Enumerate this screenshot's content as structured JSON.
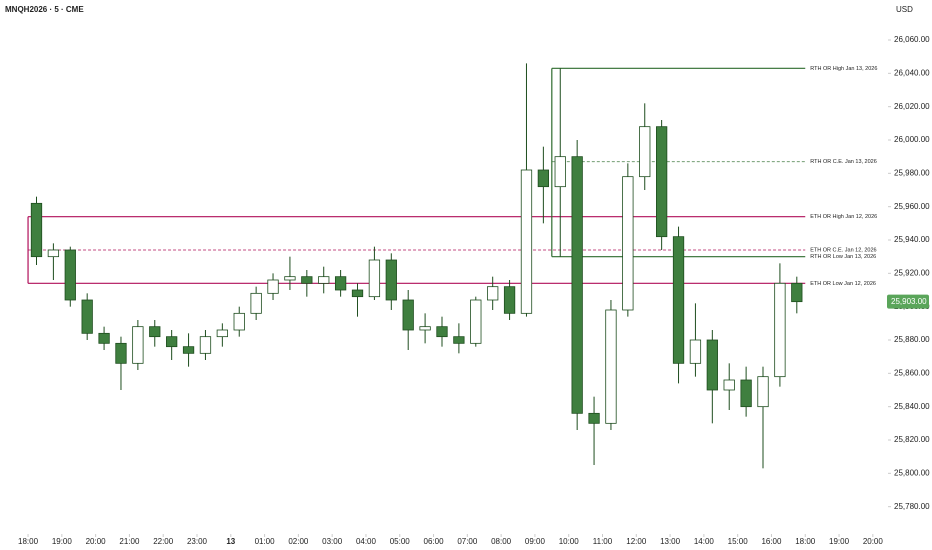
{
  "chart_data": {
    "type": "candlestick",
    "title": "MNQH2026 · 5 · CME",
    "currency": "USD",
    "xlim": [
      -0.83,
      25.36
    ],
    "ylim": [
      25766,
      26084
    ],
    "xticks": [
      {
        "value": 0,
        "label": "18:00"
      },
      {
        "value": 1,
        "label": "19:00"
      },
      {
        "value": 2,
        "label": "20:00"
      },
      {
        "value": 3,
        "label": "21:00"
      },
      {
        "value": 4,
        "label": "22:00"
      },
      {
        "value": 5,
        "label": "23:00"
      },
      {
        "value": 6,
        "label": "13"
      },
      {
        "value": 7,
        "label": "01:00"
      },
      {
        "value": 8,
        "label": "02:00"
      },
      {
        "value": 9,
        "label": "03:00"
      },
      {
        "value": 10,
        "label": "04:00"
      },
      {
        "value": 11,
        "label": "05:00"
      },
      {
        "value": 12,
        "label": "06:00"
      },
      {
        "value": 13,
        "label": "07:00"
      },
      {
        "value": 14,
        "label": "08:00"
      },
      {
        "value": 15,
        "label": "09:00"
      },
      {
        "value": 16,
        "label": "10:00"
      },
      {
        "value": 17,
        "label": "11:00"
      },
      {
        "value": 18,
        "label": "12:00"
      },
      {
        "value": 19,
        "label": "13:00"
      },
      {
        "value": 20,
        "label": "14:00"
      },
      {
        "value": 21,
        "label": "15:00"
      },
      {
        "value": 22,
        "label": "16:00"
      },
      {
        "value": 23,
        "label": "18:00"
      },
      {
        "value": 24,
        "label": "19:00"
      },
      {
        "value": 25,
        "label": "20:00"
      }
    ],
    "yticks": [
      {
        "value": 25780,
        "label": "25,780.00"
      },
      {
        "value": 25800,
        "label": "25,800.00"
      },
      {
        "value": 25820,
        "label": "25,820.00"
      },
      {
        "value": 25840,
        "label": "25,840.00"
      },
      {
        "value": 25860,
        "label": "25,860.00"
      },
      {
        "value": 25880,
        "label": "25,880.00"
      },
      {
        "value": 25900,
        "label": "25,900.00"
      },
      {
        "value": 25920,
        "label": "25,920.00"
      },
      {
        "value": 25940,
        "label": "25,940.00"
      },
      {
        "value": 25960,
        "label": "25,960.00"
      },
      {
        "value": 25980,
        "label": "25,980.00"
      },
      {
        "value": 26000,
        "label": "26,000.00"
      },
      {
        "value": 26020,
        "label": "26,020.00"
      },
      {
        "value": 26040,
        "label": "26,040.00"
      },
      {
        "value": 26060,
        "label": "26,060.00"
      }
    ],
    "x": [
      0,
      0.5,
      1,
      1.5,
      2,
      2.5,
      3,
      3.5,
      4,
      4.5,
      5,
      5.5,
      6,
      6.5,
      7,
      7.5,
      8,
      8.5,
      9,
      9.5,
      10,
      10.5,
      11,
      11.5,
      12,
      12.5,
      13,
      13.5,
      14,
      14.5,
      15,
      15.5,
      16,
      16.5,
      17,
      17.5,
      18,
      18.5,
      19,
      19.5,
      20,
      20.5,
      21,
      21.5,
      22,
      22.5
    ],
    "open": [
      25962,
      25930,
      25934,
      25904,
      25884,
      25878,
      25866,
      25888,
      25882,
      25876,
      25872,
      25882,
      25886,
      25896,
      25908,
      25916,
      25918,
      25914,
      25918,
      25910,
      25906,
      25928,
      25904,
      25886,
      25888,
      25882,
      25878,
      25904,
      25912,
      25896,
      25982,
      25972,
      25990,
      25836,
      25830,
      25898,
      25978,
      26008,
      25942,
      25866,
      25880,
      25850,
      25856,
      25840,
      25858,
      25914
    ],
    "high": [
      25966,
      25938,
      25936,
      25908,
      25888,
      25882,
      25892,
      25892,
      25886,
      25884,
      25886,
      25890,
      25900,
      25912,
      25920,
      25930,
      25922,
      25924,
      25922,
      25914,
      25936,
      25932,
      25910,
      25896,
      25894,
      25890,
      25906,
      25918,
      25916,
      26046,
      25996,
      26043,
      26000,
      25846,
      25904,
      25986,
      26022,
      26012,
      25948,
      25902,
      25886,
      25866,
      25864,
      25864,
      25926,
      25918
    ],
    "low": [
      25925,
      25916,
      25900,
      25880,
      25874,
      25850,
      25862,
      25876,
      25868,
      25864,
      25868,
      25876,
      25882,
      25892,
      25904,
      25910,
      25906,
      25908,
      25906,
      25894,
      25904,
      25898,
      25874,
      25878,
      25876,
      25872,
      25876,
      25898,
      25892,
      25894,
      25950,
      25930,
      25826,
      25805,
      25826,
      25894,
      25970,
      25934,
      25854,
      25858,
      25830,
      25838,
      25834,
      25803,
      25852,
      25896
    ],
    "close": [
      25930,
      25934,
      25904,
      25884,
      25878,
      25866,
      25888,
      25882,
      25876,
      25872,
      25882,
      25886,
      25896,
      25908,
      25916,
      25918,
      25914,
      25918,
      25910,
      25906,
      25928,
      25904,
      25886,
      25888,
      25882,
      25878,
      25904,
      25912,
      25896,
      25982,
      25972,
      25990,
      25836,
      25830,
      25898,
      25978,
      26008,
      25942,
      25866,
      25880,
      25850,
      25856,
      25840,
      25858,
      25914,
      25903
    ],
    "up_color": "#ffffff",
    "down_color": "#3f7f3f",
    "wick_color": "#1e4d1e",
    "levels": [
      {
        "label": "RTH OR High Jan 13, 2026",
        "price": 26043,
        "start": 15.5,
        "end": 23,
        "color": "#2e6b2e",
        "dashed": false
      },
      {
        "label": "RTH OR C.E. Jan 13, 2026",
        "price": 25987,
        "start": 15.5,
        "end": 23,
        "color": "#5f8f5f",
        "dashed": true
      },
      {
        "label": "ETH OR High Jan 12, 2026",
        "price": 25954,
        "start": 0,
        "end": 23,
        "color": "#b0105a",
        "dashed": false
      },
      {
        "label": "ETH OR C.E. Jan 12, 2026",
        "price": 25934,
        "start": 0,
        "end": 23,
        "color": "#b0105a",
        "dashed": true
      },
      {
        "label": "RTH OR Low Jan 13, 2026",
        "price": 25930,
        "start": 15.5,
        "end": 23,
        "color": "#2e6b2e",
        "dashed": false
      },
      {
        "label": "ETH OR Low Jan 12, 2026",
        "price": 25914,
        "start": 0,
        "end": 23,
        "color": "#b0105a",
        "dashed": false
      }
    ],
    "last_price": {
      "value": 25903,
      "label": "25,903.00"
    },
    "last_price_color": "#5aa55a"
  }
}
